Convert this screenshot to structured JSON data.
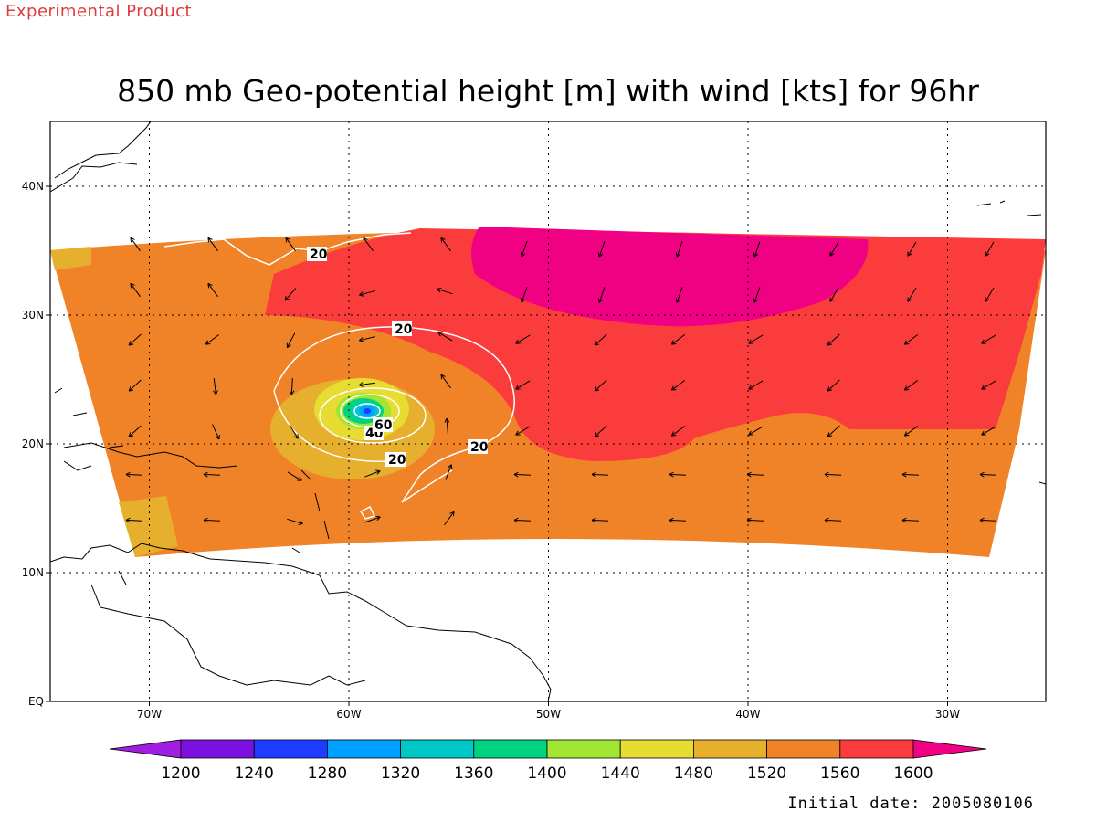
{
  "header": {
    "product_label": "Experimental Product",
    "title": "850 mb Geo-potential height [m] with wind [kts] for 96hr"
  },
  "footer": {
    "initial_date": "Initial date: 2005080106"
  },
  "map": {
    "lat_labels": [
      "40N",
      "30N",
      "20N",
      "10N",
      "EQ"
    ],
    "lon_labels": [
      "70W",
      "60W",
      "50W",
      "40W",
      "30W"
    ],
    "lat_values": [
      40,
      30,
      20,
      10,
      0
    ],
    "lon_values": [
      -70,
      -60,
      -50,
      -40,
      -30
    ],
    "contour_labels": [
      "20",
      "20",
      "20",
      "20",
      "40",
      "60"
    ],
    "fill_colors": {
      "c1200": "#a01ee0",
      "c1240": "#7c10e0",
      "c1280": "#1e3cff",
      "c1320": "#00a0ff",
      "c1360": "#00c8c8",
      "c1400": "#00d282",
      "c1440": "#a0e632",
      "c1480": "#e6dc32",
      "c1520": "#e6af2d",
      "c1560": "#f08228",
      "c1600": "#fa3c3c",
      "c_over": "#f00082"
    }
  },
  "colorbar": {
    "labels": [
      "1200",
      "1240",
      "1280",
      "1320",
      "1360",
      "1400",
      "1440",
      "1480",
      "1520",
      "1560",
      "1600"
    ],
    "colors": [
      "#7c10e0",
      "#1e3cff",
      "#00a0ff",
      "#00c8c8",
      "#00d282",
      "#a0e632",
      "#e6dc32",
      "#e6af2d",
      "#f08228",
      "#fa3c3c"
    ],
    "low_color": "#a01ee0",
    "high_color": "#f00082"
  }
}
